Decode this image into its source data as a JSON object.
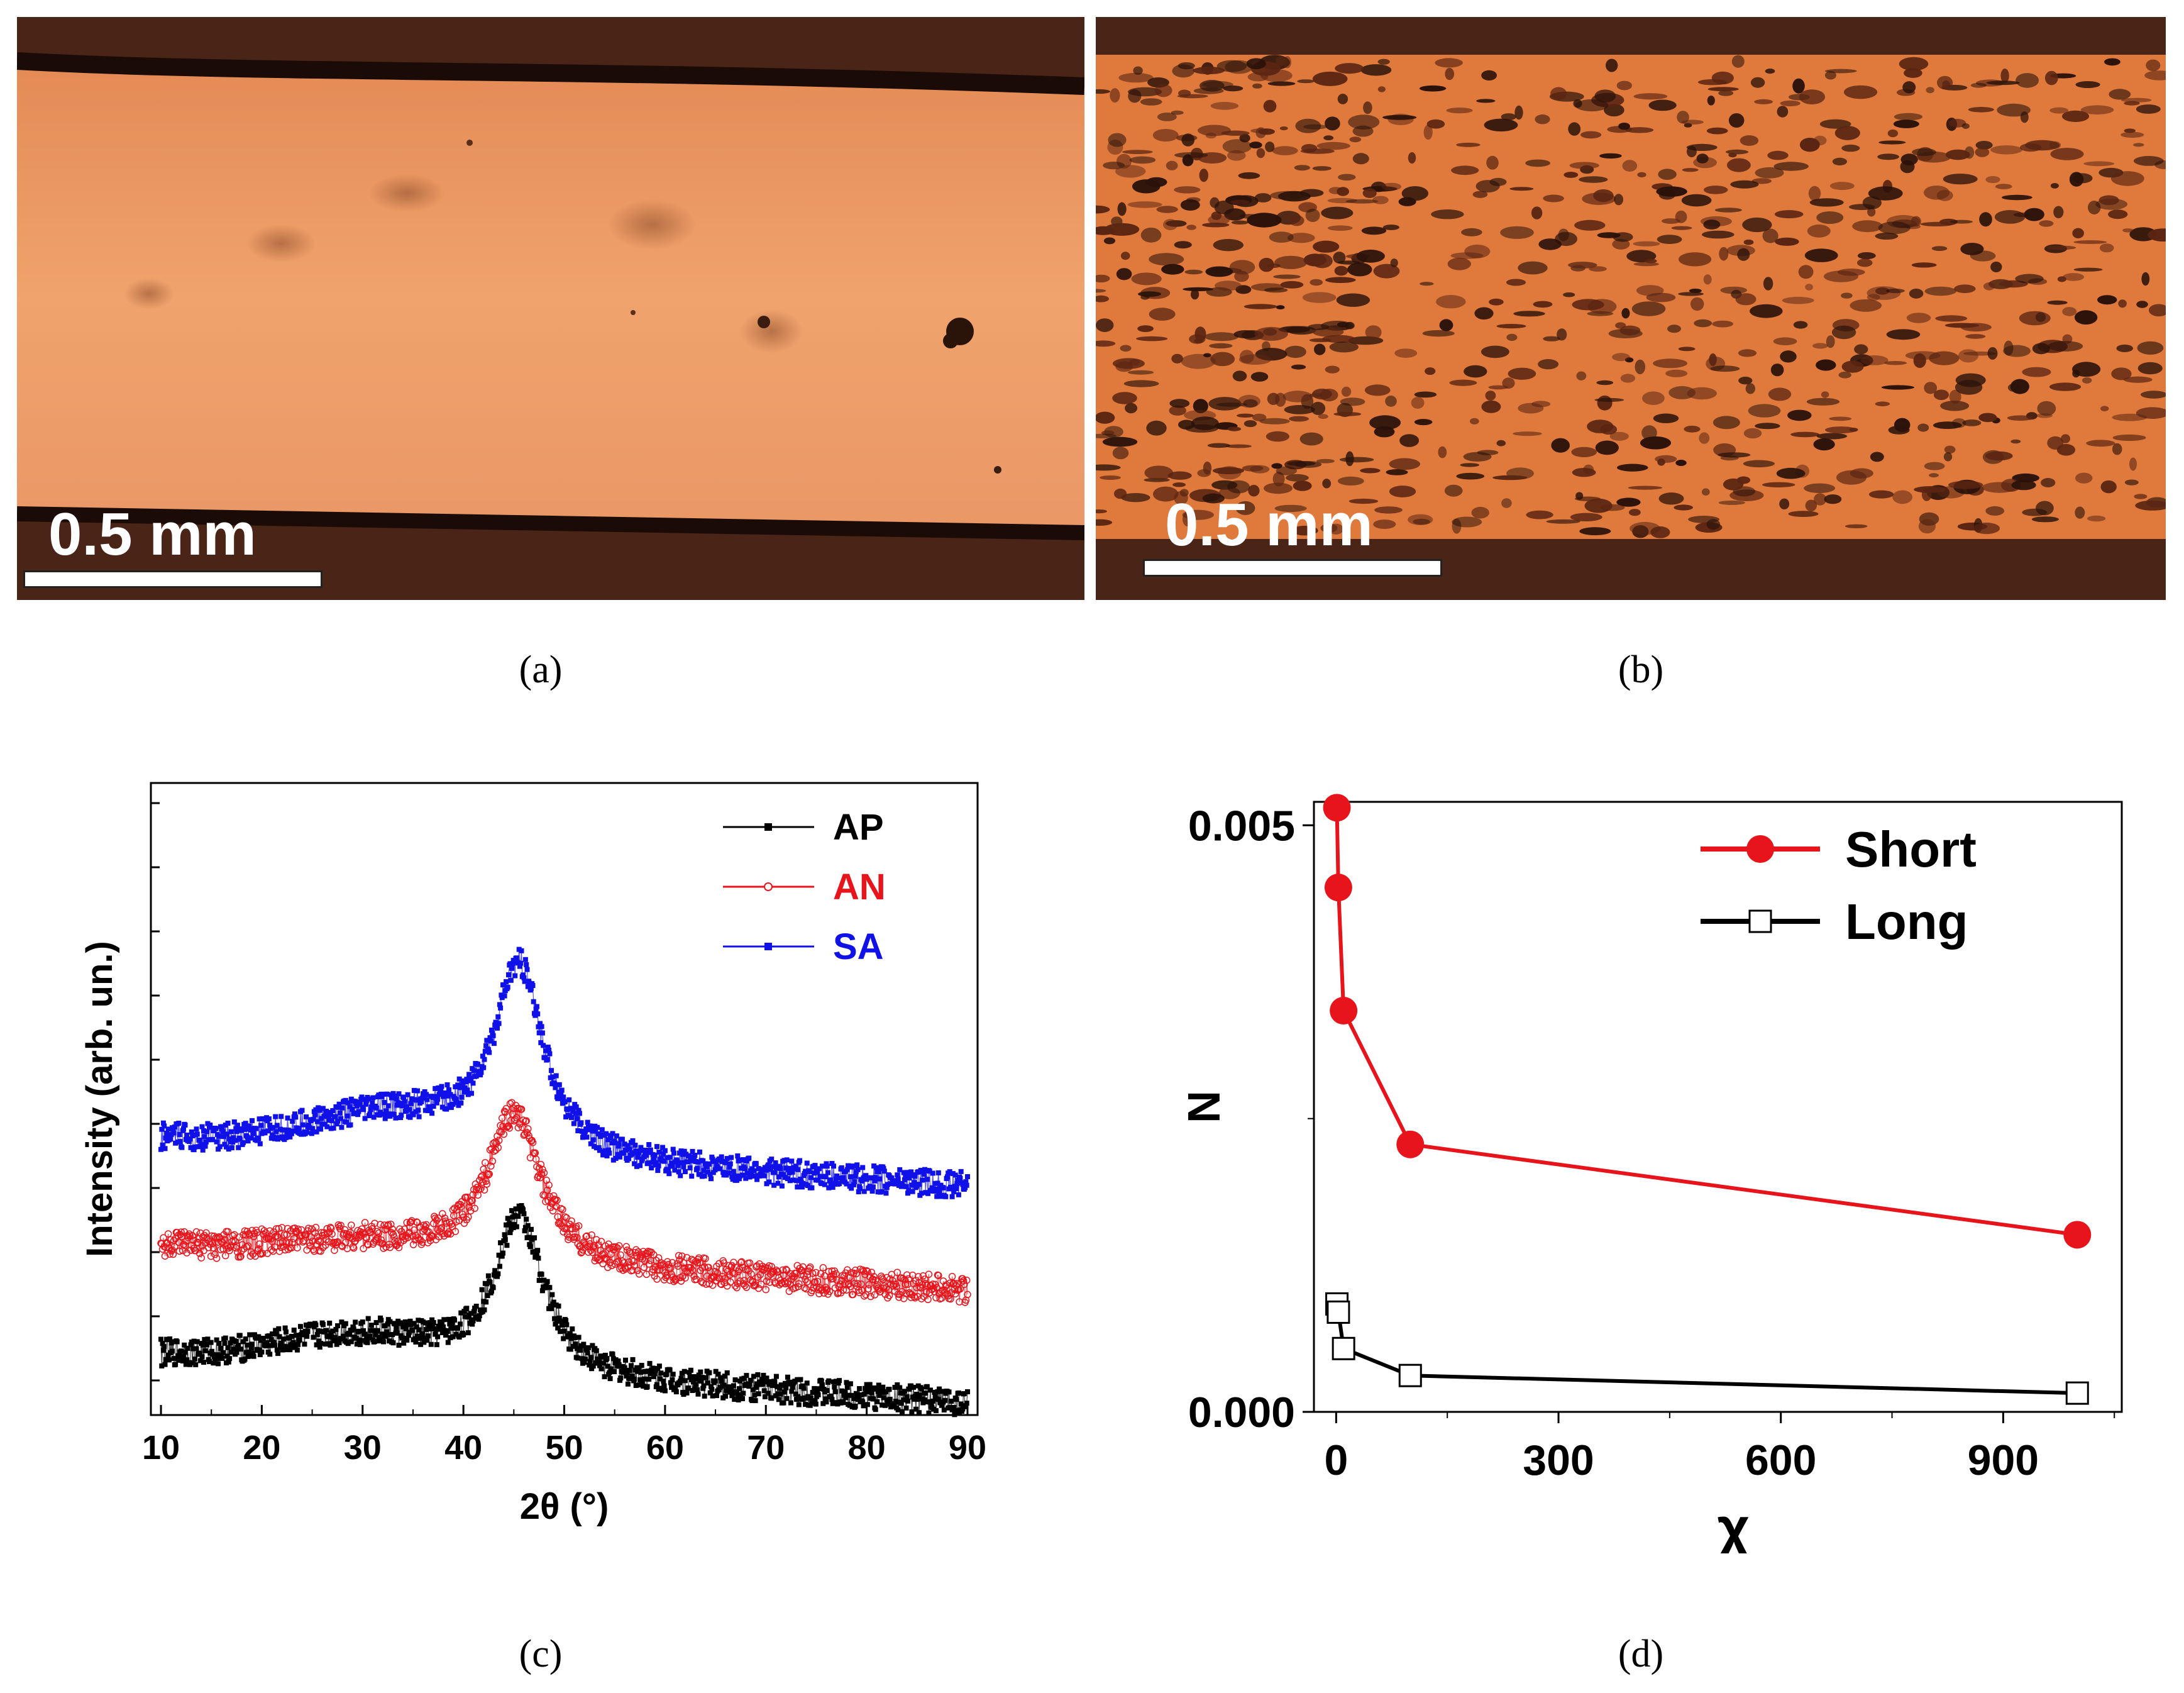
{
  "panels": {
    "a": {
      "caption": "(a)",
      "scale_label": "0.5 mm"
    },
    "b": {
      "caption": "(b)",
      "scale_label": "0.5 mm"
    },
    "c": {
      "caption": "(c)"
    },
    "d": {
      "caption": "(d)"
    }
  },
  "chart_data": [
    {
      "id": "c",
      "type": "scatter",
      "xlabel": "2θ (°)",
      "ylabel": "Intensity (arb. un.)",
      "xlim": [
        9,
        91
      ],
      "xticks": [
        10,
        20,
        30,
        40,
        50,
        60,
        70,
        80,
        90
      ],
      "yticks_labeled": false,
      "legend_position": "top-right",
      "series": [
        {
          "name": "AP",
          "color": "#000000",
          "marker": "filled-square",
          "baseline": 0.2,
          "peak_center": 45.5,
          "peak_height": 0.52,
          "peak_width": 3.0,
          "hump_center": 30,
          "hump_height": 0.1,
          "slope": -0.002
        },
        {
          "name": "AN",
          "color": "#e8141b",
          "marker": "open-circle",
          "baseline": 0.56,
          "peak_center": 45.0,
          "peak_height": 0.5,
          "peak_width": 3.2,
          "hump_center": 30,
          "hump_height": 0.05,
          "slope": -0.0018
        },
        {
          "name": "SA",
          "color": "#1010e8",
          "marker": "filled-square",
          "baseline": 0.92,
          "peak_center": 45.5,
          "peak_height": 0.62,
          "peak_width": 3.0,
          "hump_center": 33,
          "hump_height": 0.12,
          "slope": -0.002
        }
      ]
    },
    {
      "id": "d",
      "type": "line",
      "xlabel": "χ",
      "ylabel": "N",
      "xlim": [
        -30,
        1060
      ],
      "ylim": [
        0,
        0.0052
      ],
      "xticks": [
        0,
        300,
        600,
        900
      ],
      "yticks": [
        "0.000",
        "0.005"
      ],
      "legend_position": "top-right",
      "series": [
        {
          "name": "Short",
          "color": "#e8141b",
          "marker": "filled-circle",
          "x": [
            1,
            3,
            10,
            100,
            1000
          ],
          "y": [
            0.00515,
            0.00447,
            0.00342,
            0.00228,
            0.00151
          ]
        },
        {
          "name": "Long",
          "color": "#000000",
          "marker": "open-square",
          "x": [
            1,
            3,
            10,
            100,
            1000
          ],
          "y": [
            0.00092,
            0.00085,
            0.00054,
            0.00031,
            0.00016
          ]
        }
      ]
    }
  ]
}
